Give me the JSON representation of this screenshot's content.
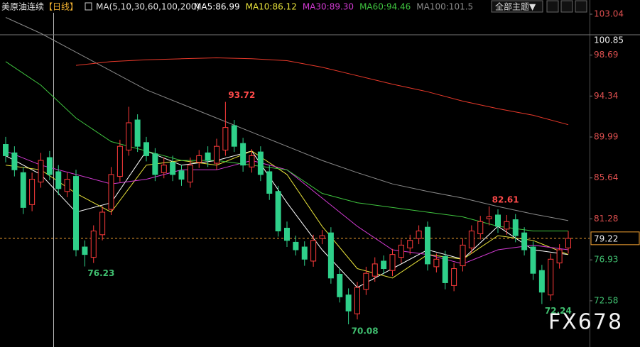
{
  "chart_data": {
    "type": "candlestick",
    "title": "美原油连续",
    "subtitle": "【日线】",
    "indicator": "MA(5,10,30,60,100,200)",
    "theme_button": "全部主题▼",
    "watermark": "FX678",
    "up_color": "#ff3b3b",
    "down_color": "#2fd08a",
    "open": [
      89.2,
      88.3,
      86.2,
      82.8,
      85.2,
      87.8,
      86.3,
      84.2,
      85.8,
      78.3,
      77.2,
      79.6,
      82.3,
      85.8,
      88.6,
      91.8,
      89.4,
      88.2,
      86.2,
      87.3,
      86.4,
      85.2,
      87.3,
      88.3,
      87.2,
      88.6,
      91.2,
      89.3,
      86.8,
      88.4,
      86.3,
      84.2,
      80.3,
      78.8,
      78.3,
      76.8,
      79.2,
      79.8,
      75.4,
      73.2,
      71.2,
      73.8,
      75.2,
      76.8,
      75.8,
      77.2,
      78.2,
      79.2,
      80.4,
      76.2,
      77.3,
      74.2,
      76.3,
      78.2,
      79.7,
      81.3,
      81.7,
      80.2,
      81.2,
      79.8,
      78.3,
      75.8,
      73.2,
      76.6,
      78.2
    ],
    "high": [
      90,
      89,
      86.8,
      86.2,
      88.3,
      88.5,
      87,
      86.2,
      86.5,
      79,
      80.6,
      82.6,
      86.8,
      89.7,
      93.2,
      92.4,
      90,
      88.8,
      87.8,
      88,
      87,
      87.8,
      88.6,
      89,
      89.8,
      93.72,
      91.8,
      89.9,
      88.7,
      89,
      87,
      84.8,
      81,
      79.5,
      78.9,
      79.6,
      80.1,
      80.4,
      76,
      73.9,
      74.6,
      76.2,
      77.2,
      77.4,
      78.1,
      79.1,
      79.6,
      80.6,
      81,
      77.6,
      77.9,
      76.6,
      79.2,
      80.6,
      81.6,
      82.61,
      82.3,
      81.7,
      81.8,
      80.4,
      78.9,
      76.4,
      77.6,
      78.6,
      80
    ],
    "low": [
      87.3,
      85.8,
      81.8,
      82.1,
      84.6,
      85.4,
      83.8,
      83.6,
      77.3,
      76.23,
      76.6,
      79,
      81.7,
      85.2,
      88,
      88.4,
      87.4,
      85.3,
      85.6,
      85.3,
      84.8,
      84.6,
      86.7,
      86.8,
      86.5,
      88,
      88.4,
      86.3,
      86.2,
      85.3,
      83.3,
      79.4,
      78.3,
      77.4,
      76.3,
      76.2,
      78.6,
      74.4,
      72.4,
      70.08,
      70.6,
      73.2,
      74.6,
      75.4,
      75.2,
      76.6,
      77.5,
      78.6,
      75.8,
      75.6,
      73.8,
      73.6,
      75.7,
      77.6,
      79.1,
      80.6,
      79.8,
      79.6,
      78.8,
      77.4,
      74.8,
      72.24,
      72.6,
      76,
      77.6
    ],
    "close": [
      88,
      86.5,
      82.5,
      85.5,
      87.5,
      86,
      84.5,
      85.5,
      78,
      77.5,
      80,
      82,
      86,
      89,
      91.5,
      89,
      88,
      86,
      87,
      86,
      85.5,
      87,
      88,
      87.5,
      89,
      91,
      89,
      87,
      88,
      86,
      84,
      80,
      79,
      78,
      77,
      79,
      79.5,
      75,
      73,
      71.5,
      74,
      75.5,
      76.5,
      76,
      77.5,
      78.5,
      79,
      80,
      76.5,
      77,
      74.5,
      76,
      78.5,
      80,
      81,
      81.5,
      80.5,
      81,
      79.5,
      78,
      75.5,
      73.5,
      77,
      78,
      79.22
    ],
    "series": [
      {
        "name": "MA5:86.99",
        "color": "#ffffff",
        "x": [
          0,
          4,
          8,
          12,
          16,
          20,
          24,
          28,
          32,
          36,
          40,
          44,
          48,
          52,
          56,
          60,
          64
        ],
        "values": [
          88,
          86,
          82,
          83,
          88.5,
          87,
          87.5,
          88.5,
          83,
          78,
          74,
          76,
          78,
          77,
          80.5,
          78,
          77.5
        ]
      },
      {
        "name": "MA10:86.12",
        "color": "#e8e23a",
        "x": [
          0,
          4,
          8,
          12,
          16,
          20,
          24,
          28,
          32,
          36,
          40,
          44,
          48,
          52,
          56,
          60,
          64
        ],
        "values": [
          87,
          86.5,
          84,
          82,
          87,
          87.5,
          87,
          88.5,
          86,
          80.5,
          76,
          75,
          77.5,
          77,
          79.5,
          79,
          77.5
        ]
      },
      {
        "name": "MA30:89.30",
        "color": "#d23ad2",
        "x": [
          0,
          4,
          8,
          12,
          16,
          20,
          24,
          28,
          32,
          36,
          40,
          44,
          48,
          52,
          56,
          60,
          64
        ],
        "values": [
          88.5,
          87,
          86,
          85,
          85.5,
          86.5,
          86.5,
          87.5,
          86.5,
          83.5,
          80.5,
          78,
          77.5,
          76.5,
          78,
          78.5,
          78
        ]
      },
      {
        "name": "MA60:94.46",
        "color": "#3fc43f",
        "x": [
          0,
          4,
          8,
          12,
          16,
          20,
          24,
          28,
          32,
          36,
          40,
          44,
          48,
          52,
          56,
          60,
          64
        ],
        "values": [
          98,
          95.5,
          92,
          89.5,
          88.5,
          87.5,
          87.5,
          87,
          86.5,
          84,
          83,
          82.5,
          82,
          81.5,
          80.5,
          80,
          80
        ]
      },
      {
        "name": "MA100:101.5",
        "color": "#8a8a8a",
        "x": [
          0,
          4,
          8,
          12,
          16,
          20,
          24,
          28,
          32,
          36,
          40,
          44,
          48,
          52,
          56,
          60,
          64
        ],
        "values": [
          102.7,
          101,
          99,
          97,
          95,
          93.5,
          92,
          90.5,
          89,
          87.5,
          86.2,
          85,
          84.2,
          83.5,
          82.6,
          81.8,
          81.1
        ]
      },
      {
        "color": "#e8392a",
        "x": [
          8,
          12,
          16,
          20,
          24,
          28,
          32,
          36,
          40,
          44,
          48,
          52,
          56,
          60,
          64
        ],
        "values": [
          97.6,
          98,
          98.2,
          98.3,
          98.4,
          98.3,
          98.1,
          97.4,
          96.5,
          95.6,
          94.8,
          93.8,
          93,
          92.3,
          91.3
        ]
      }
    ],
    "ylim": [
      67.67,
      103.19
    ],
    "yticks": [
      103.04,
      98.69,
      94.34,
      89.99,
      85.64,
      81.28,
      76.93,
      72.58
    ],
    "reference_line": {
      "value": 100.85
    },
    "last_price": {
      "value": 79.22,
      "color": "#f0a030"
    },
    "annotations": [
      {
        "x": 25,
        "value": 93.72
      },
      {
        "x": 55,
        "value": 82.61
      },
      {
        "x": 9,
        "value": 76.23
      },
      {
        "x": 39,
        "value": 70.08
      },
      {
        "x": 61,
        "value": 72.24
      }
    ]
  }
}
